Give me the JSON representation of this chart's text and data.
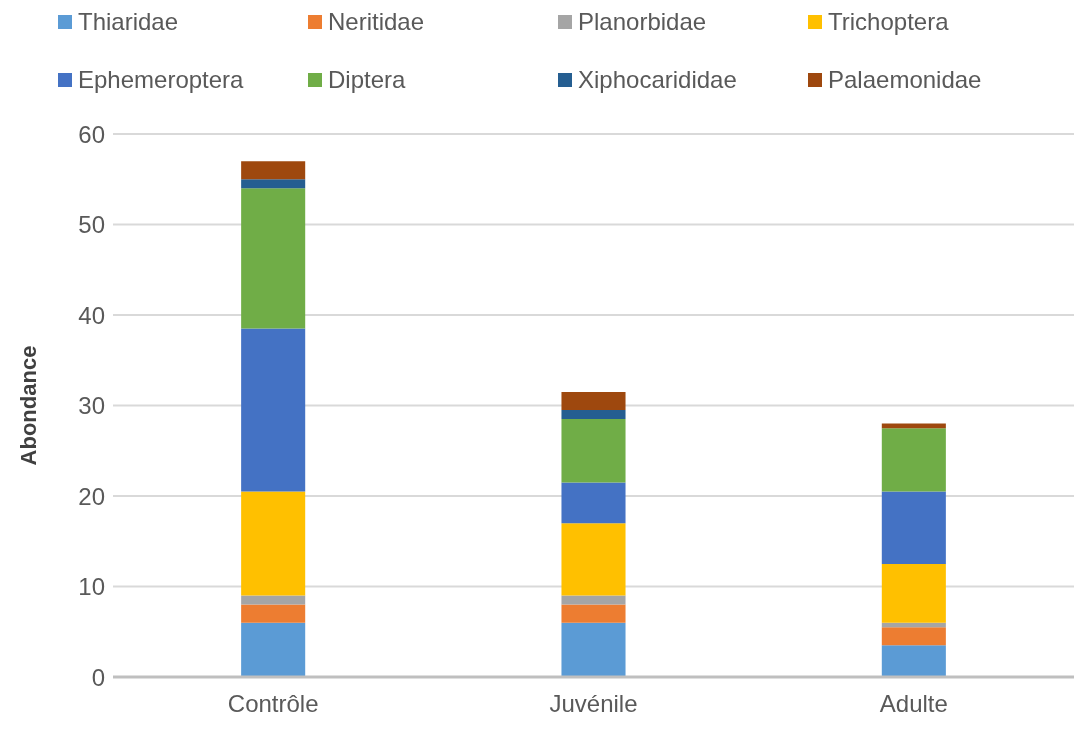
{
  "chart_data": {
    "type": "bar",
    "stacked": true,
    "ylabel": "Abondance",
    "categories": [
      "Contrôle",
      "Juvénile",
      "Adulte"
    ],
    "series": [
      {
        "name": "Thiaridae",
        "color": "#5b9bd5",
        "values": [
          6,
          6,
          3.5
        ]
      },
      {
        "name": "Neritidae",
        "color": "#ed7d31",
        "values": [
          2,
          2,
          2
        ]
      },
      {
        "name": "Planorbidae",
        "color": "#a5a5a5",
        "values": [
          1,
          1,
          0.5
        ]
      },
      {
        "name": "Trichoptera",
        "color": "#ffc000",
        "values": [
          11.5,
          8,
          6.5
        ]
      },
      {
        "name": "Ephemeroptera",
        "color": "#4472c4",
        "values": [
          18,
          4.5,
          8
        ]
      },
      {
        "name": "Diptera",
        "color": "#70ad47",
        "values": [
          15.5,
          7,
          7
        ]
      },
      {
        "name": "Xiphocarididae",
        "color": "#255e91",
        "values": [
          1,
          1,
          0
        ]
      },
      {
        "name": "Palaemonidae",
        "color": "#9e480e",
        "values": [
          2,
          2,
          0.5
        ]
      }
    ],
    "ylim": [
      0,
      60
    ],
    "yticks": [
      0,
      10,
      20,
      30,
      40,
      50,
      60
    ],
    "grid": "y",
    "legend": "top"
  }
}
